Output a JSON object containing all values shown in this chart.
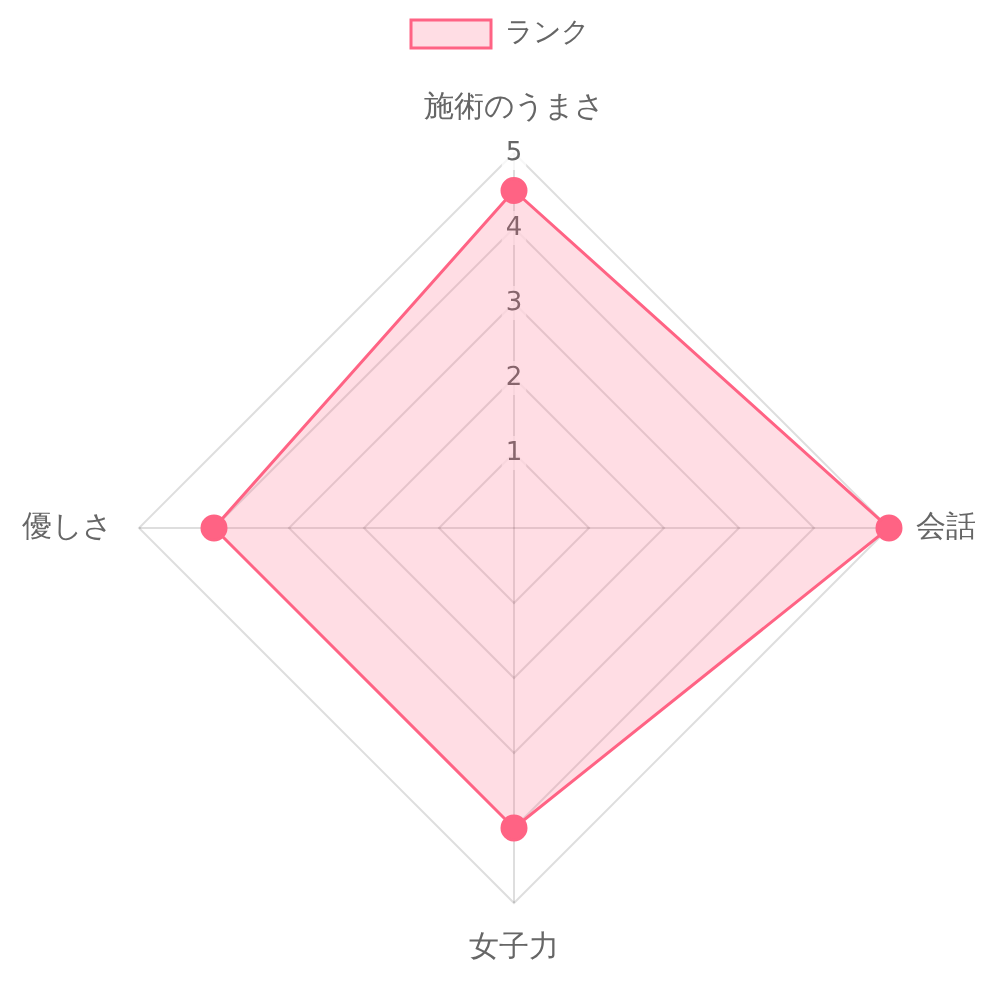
{
  "chart_data": {
    "type": "radar",
    "categories": [
      "施術のうまさ",
      "会話",
      "女子力",
      "優しさ"
    ],
    "series": [
      {
        "name": "ランク",
        "color": "#ff6384",
        "values": [
          4.5,
          5,
          4,
          4
        ]
      }
    ],
    "ylim": [
      0,
      5
    ],
    "yticks": [
      1,
      2,
      3,
      4,
      5
    ],
    "legend": "top",
    "grid": true,
    "marker": "circle"
  }
}
